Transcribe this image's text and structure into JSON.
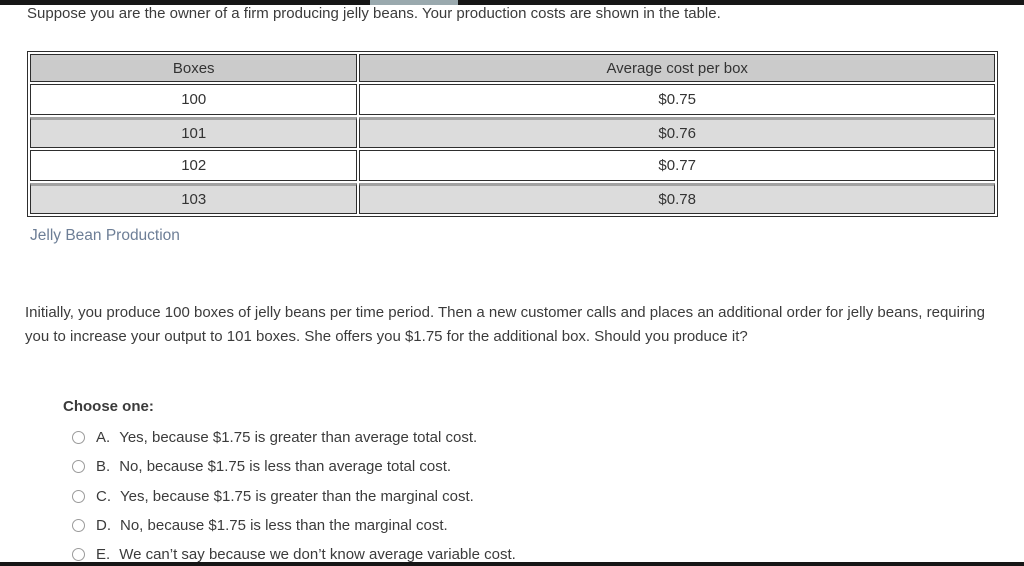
{
  "intro": "Suppose you are the owner of a firm producing jelly beans. Your production costs are shown in the table.",
  "table": {
    "headers": [
      "Boxes",
      "Average cost per box"
    ],
    "rows": [
      [
        "100",
        "$0.75"
      ],
      [
        "101",
        "$0.76"
      ],
      [
        "102",
        "$0.77"
      ],
      [
        "103",
        "$0.78"
      ]
    ],
    "caption": "Jelly Bean Production"
  },
  "question": "Initially, you produce 100 boxes of jelly beans per time period. Then a new customer calls and places an additional order for jelly beans, requiring you to increase your output to 101 boxes. She offers you $1.75 for the additional box. Should you produce it?",
  "choose_label": "Choose one:",
  "options": [
    {
      "letter": "A.",
      "text": "Yes, because $1.75 is greater than average total cost."
    },
    {
      "letter": "B.",
      "text": "No, because $1.75 is less than average total cost."
    },
    {
      "letter": "C.",
      "text": "Yes, because $1.75 is greater than the marginal cost."
    },
    {
      "letter": "D.",
      "text": "No, because $1.75 is less than the marginal cost."
    },
    {
      "letter": "E.",
      "text": "We can’t say because we don’t know average variable cost."
    }
  ],
  "colors": {
    "caption_link": "#6d7e96",
    "table_header_bg": "#cbcbcb",
    "table_shaded_row_bg": "#dcdcdc",
    "bar": "#161616"
  }
}
